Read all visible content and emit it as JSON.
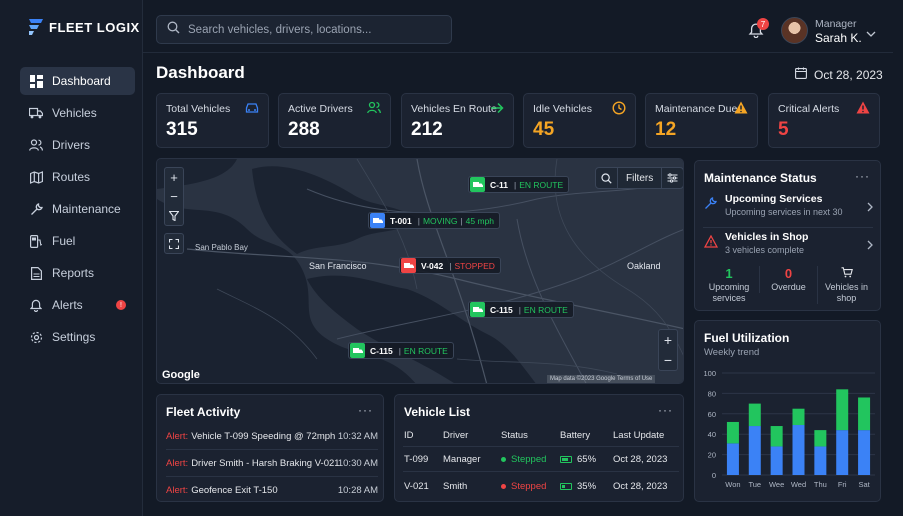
{
  "brand": {
    "name": "FLEET LOGIX"
  },
  "sidebar": {
    "items": [
      {
        "label": "Dashboard",
        "icon": "dashboard-icon",
        "active": true
      },
      {
        "label": "Vehicles",
        "icon": "truck-icon"
      },
      {
        "label": "Drivers",
        "icon": "users-icon"
      },
      {
        "label": "Routes",
        "icon": "map-icon"
      },
      {
        "label": "Maintenance",
        "icon": "wrench-icon"
      },
      {
        "label": "Fuel",
        "icon": "fuel-icon"
      },
      {
        "label": "Reports",
        "icon": "report-icon"
      },
      {
        "label": "Alerts",
        "icon": "bell-icon",
        "badge": "!"
      },
      {
        "label": "Settings",
        "icon": "gear-icon"
      }
    ]
  },
  "header": {
    "search_placeholder": "Search vehicles, drivers, locations...",
    "notification_count": "7",
    "user_role": "Manager",
    "user_name": "Sarah K."
  },
  "page": {
    "title": "Dashboard",
    "date": "Oct 28, 2023"
  },
  "stats": [
    {
      "label": "Total Vehicles",
      "value": "315",
      "icon": "car-icon",
      "color": "#ffffff",
      "icon_color": "#3b82f6"
    },
    {
      "label": "Active Drivers",
      "value": "288",
      "icon": "users-icon",
      "color": "#ffffff",
      "icon_color": "#22c55e"
    },
    {
      "label": "Vehicles En Route",
      "value": "212",
      "icon": "arrow-right-icon",
      "color": "#ffffff",
      "icon_color": "#22c55e"
    },
    {
      "label": "Idle Vehicles",
      "value": "45",
      "icon": "clock-icon",
      "color": "#f5a524",
      "icon_color": "#f5a524"
    },
    {
      "label": "Maintenance Due",
      "value": "12",
      "icon": "warning-icon",
      "color": "#f5a524",
      "icon_color": "#f5a524"
    },
    {
      "label": "Critical Alerts",
      "value": "5",
      "icon": "alert-triangle-icon",
      "color": "#ef4444",
      "icon_color": "#ef4444"
    }
  ],
  "map": {
    "filters_label": "Filters",
    "google_label": "Google",
    "attribution": "Map data ©2023 Google  Terms of Use",
    "labels": [
      {
        "text": "San Francisco",
        "type": "city"
      },
      {
        "text": "San Pablo Bay",
        "type": "water"
      },
      {
        "text": "Oakland",
        "type": "city"
      }
    ],
    "markers": [
      {
        "id": "C-11",
        "status": "EN ROUTE",
        "speed": "",
        "color": "#22c55e"
      },
      {
        "id": "T-001",
        "status": "MOVING",
        "speed": "45 mph",
        "color": "#3b82f6"
      },
      {
        "id": "V-042",
        "status": "STOPPED",
        "speed": "",
        "color": "#ef4444"
      },
      {
        "id": "C-115",
        "status": "EN ROUTE",
        "speed": "",
        "color": "#22c55e"
      },
      {
        "id": "C-115",
        "status": "EN ROUTE",
        "speed": "",
        "color": "#22c55e"
      }
    ]
  },
  "maintenance": {
    "title": "Maintenance Status",
    "rows": [
      {
        "title": "Upcoming Services",
        "subtitle": "Upcoming services in next 30",
        "icon": "wrench-icon"
      },
      {
        "title": "Vehicles in Shop",
        "subtitle": "3 vehicles complete",
        "icon": "warning-icon"
      }
    ],
    "stats": [
      {
        "value": "1",
        "label": "Upcoming services",
        "color": "#22c55e"
      },
      {
        "value": "0",
        "label": "Overdue",
        "color": "#ef4444"
      },
      {
        "value": "",
        "label": "Vehicles in shop",
        "icon": "cart-icon"
      }
    ]
  },
  "fuel": {
    "title": "Fuel Utilization",
    "subtitle": "Weekly trend"
  },
  "chart_data": {
    "type": "bar",
    "stacked": true,
    "categories": [
      "Won",
      "Tue",
      "Wee",
      "Wed",
      "Thu",
      "Fri",
      "Sat"
    ],
    "series": [
      {
        "values": [
          31,
          48,
          28,
          49,
          28,
          44,
          44
        ],
        "color": "#3b82f6"
      },
      {
        "values": [
          21,
          22,
          20,
          16,
          16,
          40,
          32
        ],
        "color": "#22c55e"
      }
    ],
    "ylim": [
      0,
      100
    ],
    "yticks": [
      0,
      20,
      40,
      60,
      80,
      100
    ],
    "grid": true
  },
  "activity": {
    "title": "Fleet Activity",
    "items": [
      {
        "prefix": "Alert:",
        "text": "Vehicle T-099 Speeding @ 72mph",
        "time": "10:32 AM"
      },
      {
        "prefix": "Alert:",
        "text": "Driver Smith - Harsh Braking V-021",
        "time": "10:30 AM"
      },
      {
        "prefix": "Alert:",
        "text": "Geofence Exit T-150",
        "time": "10:28 AM"
      }
    ]
  },
  "vehicle_list": {
    "title": "Vehicle List",
    "columns": [
      "ID",
      "Driver",
      "Status",
      "Battery",
      "Last Update"
    ],
    "rows": [
      {
        "id": "T-099",
        "driver": "Manager",
        "status": "Stepped",
        "status_color": "#22c55e",
        "battery": "65%",
        "battery_level": 0.65,
        "updated": "Oct 28, 2023"
      },
      {
        "id": "V-021",
        "driver": "Smith",
        "status": "Stepped",
        "status_color": "#ef4444",
        "battery": "35%",
        "battery_level": 0.35,
        "updated": "Oct 28, 2023"
      }
    ]
  }
}
